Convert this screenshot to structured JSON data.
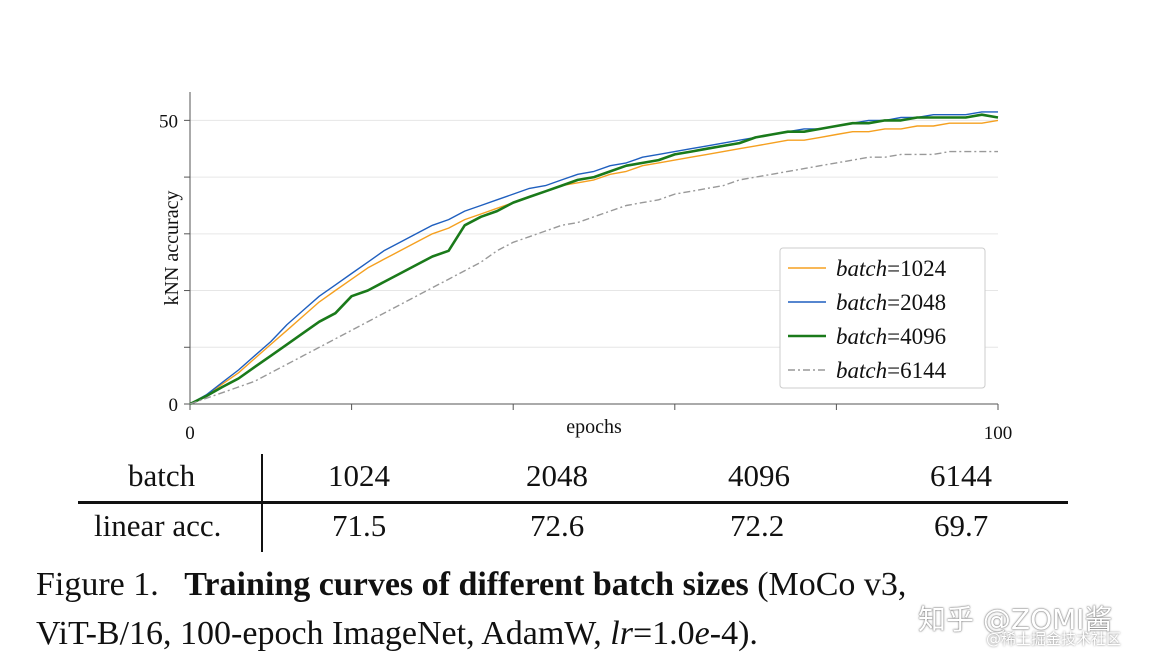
{
  "chart_data": {
    "type": "line",
    "xlabel": "epochs",
    "ylabel": "kNN accuracy",
    "xlim": [
      0,
      100
    ],
    "ylim": [
      0,
      55
    ],
    "x_ticks_labeled": [
      0,
      100
    ],
    "y_ticks_labeled": [
      0,
      50
    ],
    "grid": "horizontal",
    "legend_placement": "lower-right",
    "series": [
      {
        "name": "batch=1024",
        "label_var": "batch",
        "label_val": "=1024",
        "color": "#f5a020",
        "style": "solid",
        "x": [
          0,
          2,
          4,
          6,
          8,
          10,
          12,
          14,
          16,
          18,
          20,
          22,
          24,
          26,
          28,
          30,
          32,
          34,
          36,
          38,
          40,
          42,
          44,
          46,
          48,
          50,
          52,
          54,
          56,
          58,
          60,
          62,
          64,
          66,
          68,
          70,
          72,
          74,
          76,
          78,
          80,
          82,
          84,
          86,
          88,
          90,
          92,
          94,
          96,
          98,
          100
        ],
        "y": [
          0,
          1.5,
          3.5,
          5.5,
          8,
          10.5,
          13,
          15.5,
          18,
          20,
          22,
          24,
          25.5,
          27,
          28.5,
          30,
          31,
          32.5,
          33.5,
          34.5,
          35.5,
          36.5,
          37.5,
          38.5,
          39,
          39.5,
          40.5,
          41,
          42,
          42.5,
          43,
          43.5,
          44,
          44.5,
          45,
          45.5,
          46,
          46.5,
          46.5,
          47,
          47.5,
          48,
          48,
          48.5,
          48.5,
          49,
          49,
          49.5,
          49.5,
          49.5,
          50
        ]
      },
      {
        "name": "batch=2048",
        "label_var": "batch",
        "label_val": "=2048",
        "color": "#1f5fbf",
        "style": "solid",
        "x": [
          0,
          2,
          4,
          6,
          8,
          10,
          12,
          14,
          16,
          18,
          20,
          22,
          24,
          26,
          28,
          30,
          32,
          34,
          36,
          38,
          40,
          42,
          44,
          46,
          48,
          50,
          52,
          54,
          56,
          58,
          60,
          62,
          64,
          66,
          68,
          70,
          72,
          74,
          76,
          78,
          80,
          82,
          84,
          86,
          88,
          90,
          92,
          94,
          96,
          98,
          100
        ],
        "y": [
          0,
          1.6,
          3.8,
          6,
          8.5,
          11,
          14,
          16.5,
          19,
          21,
          23,
          25,
          27,
          28.5,
          30,
          31.5,
          32.5,
          34,
          35,
          36,
          37,
          38,
          38.5,
          39.5,
          40.5,
          41,
          42,
          42.5,
          43.5,
          44,
          44.5,
          45,
          45.5,
          46,
          46.5,
          47,
          47.5,
          48,
          48.5,
          48.5,
          49,
          49.5,
          50,
          50,
          50.5,
          50.5,
          51,
          51,
          51,
          51.5,
          51.5
        ]
      },
      {
        "name": "batch=4096",
        "label_var": "batch",
        "label_val": "=4096",
        "color": "#1a7a1a",
        "style": "solid-thick",
        "x": [
          0,
          2,
          4,
          6,
          8,
          10,
          12,
          14,
          16,
          18,
          20,
          22,
          24,
          26,
          28,
          30,
          32,
          34,
          36,
          38,
          40,
          42,
          44,
          46,
          48,
          50,
          52,
          54,
          56,
          58,
          60,
          62,
          64,
          66,
          68,
          70,
          72,
          74,
          76,
          78,
          80,
          82,
          84,
          86,
          88,
          90,
          92,
          94,
          96,
          98,
          100
        ],
        "y": [
          0,
          1.4,
          3,
          4.5,
          6.5,
          8.5,
          10.5,
          12.5,
          14.5,
          16,
          19,
          20,
          21.5,
          23,
          24.5,
          26,
          27,
          31.5,
          33,
          34,
          35.5,
          36.5,
          37.5,
          38.5,
          39.5,
          40,
          41,
          42,
          42.5,
          43,
          44,
          44.5,
          45,
          45.5,
          46,
          47,
          47.5,
          48,
          48,
          48.5,
          49,
          49.5,
          49.5,
          50,
          50,
          50.5,
          50.5,
          50.5,
          50.5,
          51,
          50.5
        ]
      },
      {
        "name": "batch=6144",
        "label_var": "batch",
        "label_val": "=6144",
        "color": "#999999",
        "style": "dashdot",
        "x": [
          0,
          2,
          4,
          6,
          8,
          10,
          12,
          14,
          16,
          18,
          20,
          22,
          24,
          26,
          28,
          30,
          32,
          34,
          36,
          38,
          40,
          42,
          44,
          46,
          48,
          50,
          52,
          54,
          56,
          58,
          60,
          62,
          64,
          66,
          68,
          70,
          72,
          74,
          76,
          78,
          80,
          82,
          84,
          86,
          88,
          90,
          92,
          94,
          96,
          98,
          100
        ],
        "y": [
          0,
          1,
          2,
          3,
          4,
          5.5,
          7,
          8.5,
          10,
          11.5,
          13,
          14.5,
          16,
          17.5,
          19,
          20.5,
          22,
          23.5,
          25,
          27,
          28.5,
          29.5,
          30.5,
          31.5,
          32,
          33,
          34,
          35,
          35.5,
          36,
          37,
          37.5,
          38,
          38.5,
          39.5,
          40,
          40.5,
          41,
          41.5,
          42,
          42.5,
          43,
          43.5,
          43.5,
          44,
          44,
          44,
          44.5,
          44.5,
          44.5,
          44.5
        ]
      }
    ]
  },
  "table": {
    "header_label": "batch",
    "row_label": "linear acc.",
    "columns": [
      "1024",
      "2048",
      "4096",
      "6144"
    ],
    "values": [
      "71.5",
      "72.6",
      "72.2",
      "69.7"
    ]
  },
  "caption": {
    "prefix": "Figure 1.",
    "bold": "Training curves of different batch sizes",
    "rest_1": " (MoCo v3,",
    "line2_a": "ViT-B/16, 100-epoch ImageNet, AdamW, ",
    "lr_var": "lr",
    "lr_eq": "=1.0",
    "lr_e": "e",
    "lr_tail": "-4)."
  },
  "watermark": {
    "main": "知乎 @ZOMI酱",
    "sub": "@稀土掘金技术社区"
  }
}
